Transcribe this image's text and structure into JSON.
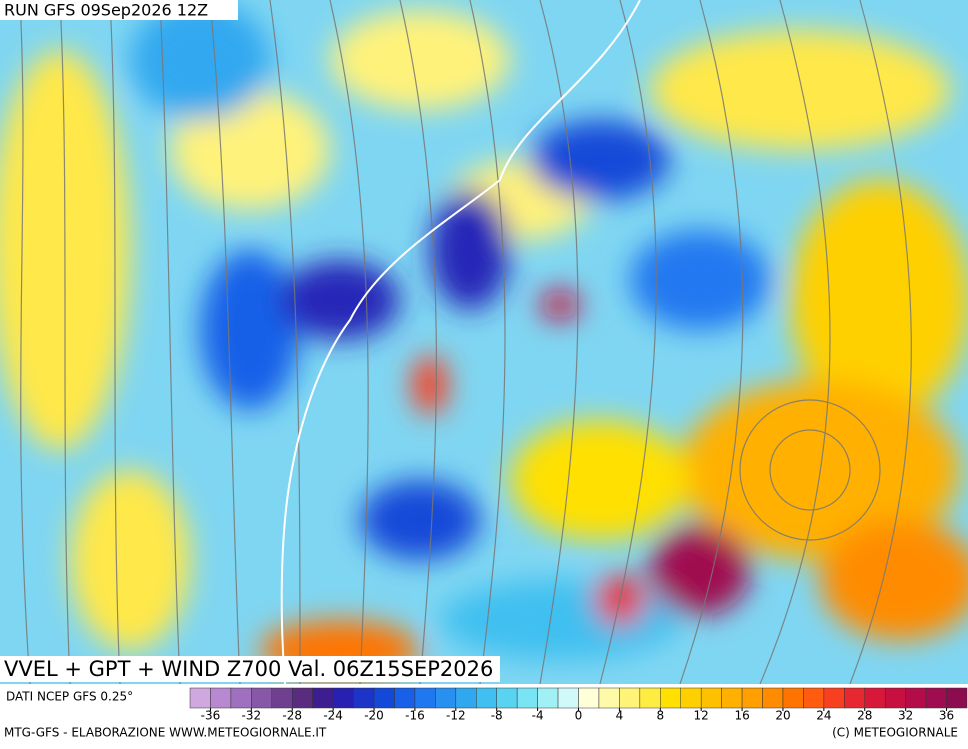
{
  "header": {
    "run": "RUN GFS 09Sep2026 12Z"
  },
  "map_title": "VVEL + GPT + WIND Z700 Val. 06Z15SEP2026",
  "source": "DATI NCEP GFS 0.25°",
  "colorbar": {
    "lim": [
      -38,
      38
    ],
    "ticks": [
      -36,
      -32,
      -28,
      -24,
      -20,
      -16,
      -12,
      -8,
      -4,
      0,
      4,
      8,
      12,
      16,
      20,
      24,
      28,
      32,
      36
    ],
    "colors": [
      "#d0a8e0",
      "#b888d0",
      "#a070c0",
      "#8858a8",
      "#704090",
      "#5a2c80",
      "#3c1e90",
      "#2820b0",
      "#1c34c8",
      "#1448d8",
      "#1860e8",
      "#2078f0",
      "#2890f0",
      "#30a8f0",
      "#40c0f0",
      "#58d4f0",
      "#78e4f4",
      "#a0f0f6",
      "#d0fafa",
      "#ffffd8",
      "#fffaa8",
      "#fff478",
      "#ffec40",
      "#ffe000",
      "#ffd000",
      "#ffc000",
      "#ffb000",
      "#ffa000",
      "#ff8c00",
      "#ff7400",
      "#ff5c10",
      "#f84020",
      "#e82830",
      "#d81838",
      "#c81040",
      "#b40c48",
      "#a00c50",
      "#8c0c50"
    ]
  },
  "footer": {
    "left": "MTG-GFS - ELABORAZIONE WWW.METEOGIORNALE.IT",
    "right": "(C) METEOGIORNALE"
  }
}
